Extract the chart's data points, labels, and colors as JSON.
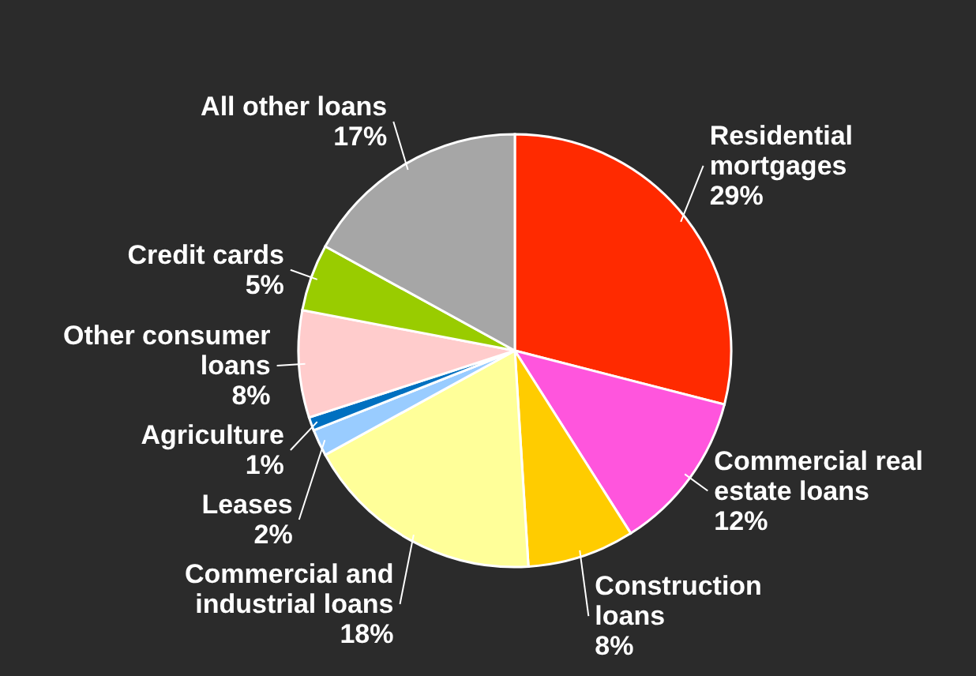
{
  "chart_data": {
    "type": "pie",
    "categories": [
      "Residential\nmortgages",
      "Commercial real\nestate loans",
      "Construction\nloans",
      "Commercial and\nindustrial loans",
      "Leases",
      "Agriculture",
      "Other consumer\nloans",
      "Credit cards",
      "All other loans"
    ],
    "values": [
      29,
      12,
      8,
      18,
      2,
      1,
      8,
      5,
      17
    ],
    "value_labels": [
      "29%",
      "12%",
      "8%",
      "18%",
      "2%",
      "1%",
      "8%",
      "5%",
      "17%"
    ],
    "colors": [
      "#ff2a00",
      "#ff55dd",
      "#ffcc00",
      "#ffff99",
      "#99ccff",
      "#0070c0",
      "#ffcccc",
      "#99cc00",
      "#a6a6a6"
    ]
  }
}
